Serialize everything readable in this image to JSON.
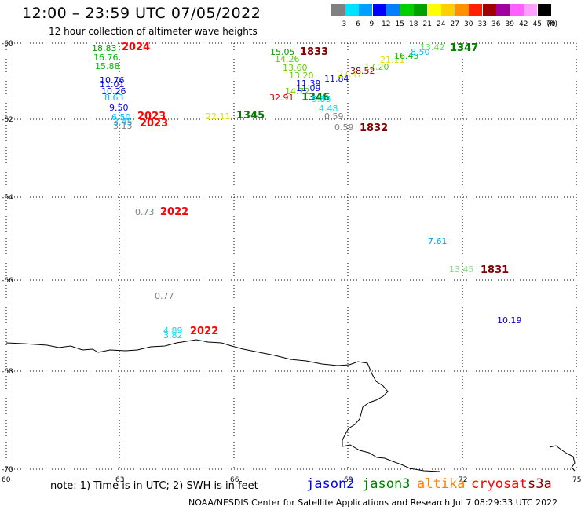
{
  "title": "12:00 – 23:59 UTC 07/05/2022",
  "subtitle": "12 hour collection of altimeter wave heights",
  "scale": {
    "colors": [
      "#808080",
      "#00e0ff",
      "#00a0ff",
      "#0000ff",
      "#0080ff",
      "#00d000",
      "#00a000",
      "#ffff00",
      "#ffd000",
      "#ff9000",
      "#ff2000",
      "#a00000",
      "#a000a0",
      "#ff60ff",
      "#ffa0ff",
      "#000000"
    ],
    "labels": [
      "3",
      "6",
      "9",
      "12",
      "15",
      "18",
      "21",
      "24",
      "27",
      "30",
      "33",
      "36",
      "39",
      "42",
      "45",
      "70",
      "(ft)"
    ]
  },
  "axes": {
    "lat_labels": [
      "-60",
      "-62",
      "-64",
      "-66",
      "-68",
      "-70"
    ],
    "lon_labels": [
      "60",
      "63",
      "66",
      "69",
      "72",
      "75"
    ]
  },
  "observations": [
    {
      "text": "18.83",
      "color": "#00a000"
    },
    {
      "text": "2024",
      "color": "#ff0000",
      "kind": "time"
    },
    {
      "text": "16.76",
      "color": "#00c000"
    },
    {
      "text": "15.88",
      "color": "#00c000"
    },
    {
      "text": "10.76",
      "color": "#0000ff"
    },
    {
      "text": "11.01",
      "color": "#0000ff"
    },
    {
      "text": "10.26",
      "color": "#0000ff"
    },
    {
      "text": "8.63",
      "color": "#00c0ff"
    },
    {
      "text": "9.50",
      "color": "#0000ff"
    },
    {
      "text": "6.50",
      "color": "#00c0ff"
    },
    {
      "text": "3.45",
      "color": "#00c0ff"
    },
    {
      "text": "3.13",
      "color": "#808080"
    },
    {
      "text": "2023",
      "color": "#ff0000",
      "kind": "time"
    },
    {
      "text": "2023",
      "color": "#ff0000",
      "kind": "time"
    },
    {
      "text": "0.73",
      "color": "#808080"
    },
    {
      "text": "2022",
      "color": "#ff0000",
      "kind": "time"
    },
    {
      "text": "0.77",
      "color": "#808080"
    },
    {
      "text": "4.89",
      "color": "#00e0ff"
    },
    {
      "text": "3.82",
      "color": "#00e0ff"
    },
    {
      "text": "2022",
      "color": "#ff0000",
      "kind": "time"
    },
    {
      "text": "22.11",
      "color": "#e0e000"
    },
    {
      "text": "1345",
      "color": "#008000",
      "kind": "time"
    },
    {
      "text": "15.05",
      "color": "#00a000"
    },
    {
      "text": "1833",
      "color": "#800000",
      "kind": "time"
    },
    {
      "text": "14.26",
      "color": "#60d000"
    },
    {
      "text": "13.60",
      "color": "#60d000"
    },
    {
      "text": "13.20",
      "color": "#60d000"
    },
    {
      "text": "11.39",
      "color": "#0000ff"
    },
    {
      "text": "11.09",
      "color": "#0000ff"
    },
    {
      "text": "11.84",
      "color": "#0000ff"
    },
    {
      "text": "38.52",
      "color": "#800000"
    },
    {
      "text": "32.91",
      "color": "#d00000"
    },
    {
      "text": "14.72",
      "color": "#60d000"
    },
    {
      "text": "1346",
      "color": "#008000",
      "kind": "time"
    },
    {
      "text": "5.86",
      "color": "#00e0ff"
    },
    {
      "text": "4.48",
      "color": "#00e0ff"
    },
    {
      "text": "0.59",
      "color": "#808080"
    },
    {
      "text": "0.59",
      "color": "#808080"
    },
    {
      "text": "1832",
      "color": "#800000",
      "kind": "time"
    },
    {
      "text": "27.47",
      "color": "#e0e000"
    },
    {
      "text": "17.20",
      "color": "#60d000"
    },
    {
      "text": "21.11",
      "color": "#e0e000"
    },
    {
      "text": "16.45",
      "color": "#00c000"
    },
    {
      "text": "8.50",
      "color": "#00c0ff"
    },
    {
      "text": "13.42",
      "color": "#60e060"
    },
    {
      "text": "1347",
      "color": "#008000",
      "kind": "time"
    },
    {
      "text": "7.61",
      "color": "#00a0e0"
    },
    {
      "text": "13.45",
      "color": "#80e080"
    },
    {
      "text": "1831",
      "color": "#800000",
      "kind": "time"
    },
    {
      "text": "10.19",
      "color": "#0000c0"
    }
  ],
  "footer": {
    "note": "note: 1) Time is in UTC; 2) SWH is in feet",
    "satellites": [
      {
        "name": "jason2",
        "color": "#0000ff"
      },
      {
        "name": "jason3",
        "color": "#008000"
      },
      {
        "name": "altika",
        "color": "#ff8000"
      },
      {
        "name": "cryosat",
        "color": "#ff0000"
      },
      {
        "name": "s3a",
        "color": "#800000"
      }
    ],
    "credit": "NOAA/NESDIS Center for Satellite Applications and Research   Jul  7 08:29:33 UTC 2022"
  }
}
